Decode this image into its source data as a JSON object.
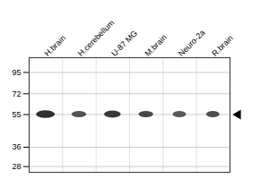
{
  "chart_data": {
    "type": "gel",
    "categories": [
      "H.brain",
      "H.cerebellum",
      "U-87 MG",
      "M.brain",
      "Neuro-2a",
      "R.brain"
    ],
    "values": [
      55,
      55,
      55,
      55,
      55,
      55
    ],
    "intensity": [
      0.82,
      0.68,
      0.78,
      0.72,
      0.65,
      0.7
    ],
    "band_width": [
      0.28,
      0.22,
      0.25,
      0.22,
      0.2,
      0.2
    ],
    "band_height": [
      0.022,
      0.018,
      0.02,
      0.018,
      0.018,
      0.018
    ],
    "arrow": 55,
    "log": "y",
    "ylim": [
      26,
      115
    ],
    "yticks": [
      95,
      72,
      55,
      36,
      28
    ],
    "grid": true
  }
}
